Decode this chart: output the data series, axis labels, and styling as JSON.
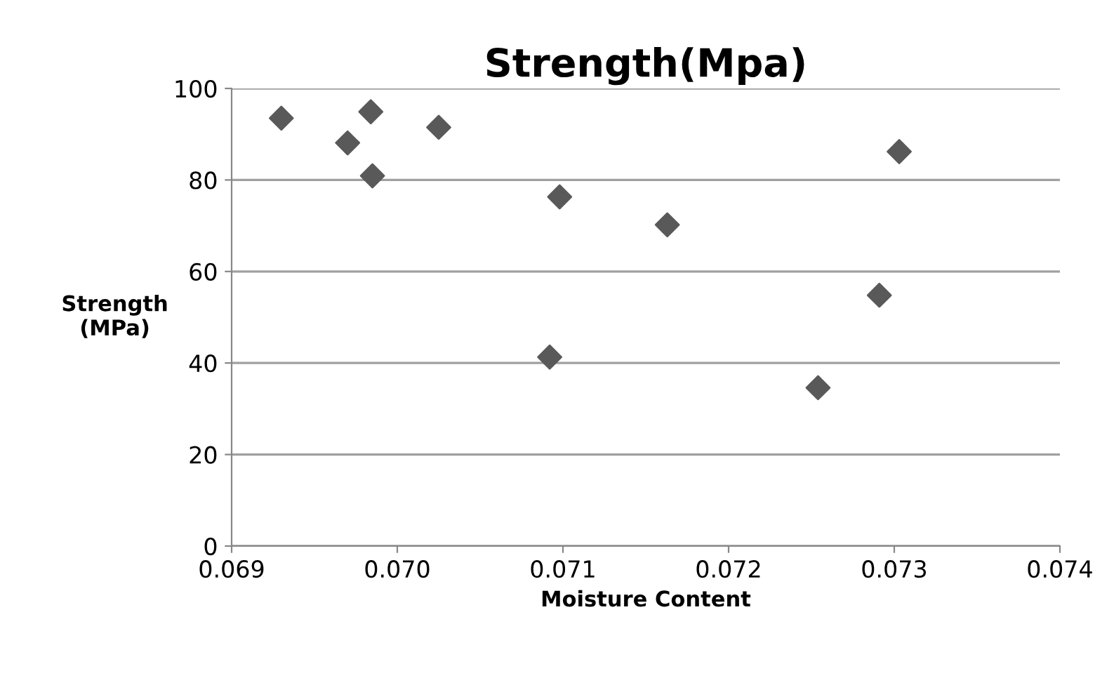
{
  "chart_data": {
    "type": "scatter",
    "title": "Strength(Mpa)",
    "xlabel": "Moisture Content",
    "ylabel": "Strength\n(MPa)",
    "x": [
      0.0693,
      0.0697,
      0.06984,
      0.06985,
      0.07025,
      0.07098,
      0.07092,
      0.07163,
      0.07303,
      0.07291,
      0.07254
    ],
    "series": [
      {
        "color": "#595959",
        "values": [
          93.5,
          88.1,
          94.9,
          80.9,
          91.5,
          76.3,
          41.3,
          70.2,
          86.2,
          54.8,
          34.6
        ]
      }
    ],
    "xlim": [
      0.069,
      0.074
    ],
    "xticks": [
      {
        "value": 0.069,
        "label": "0.069"
      },
      {
        "value": 0.07,
        "label": "0.070"
      },
      {
        "value": 0.071,
        "label": "0.071"
      },
      {
        "value": 0.072,
        "label": "0.072"
      },
      {
        "value": 0.073,
        "label": "0.073"
      },
      {
        "value": 0.074,
        "label": "0.074"
      }
    ],
    "ylim": [
      0,
      100
    ],
    "yticks": [
      0,
      20,
      40,
      60,
      80,
      100
    ],
    "grid": "y",
    "marker": "diamond",
    "legend": false
  }
}
